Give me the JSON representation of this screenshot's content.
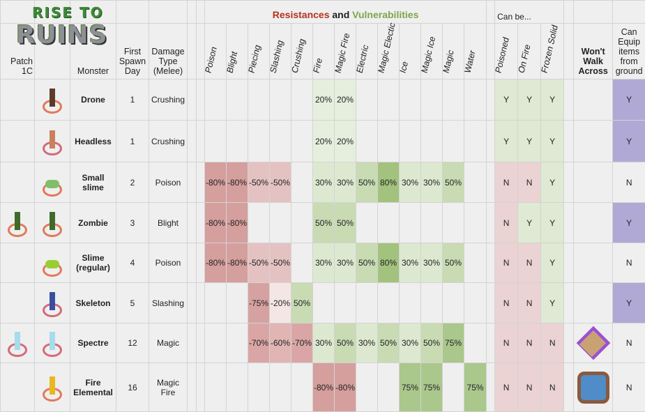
{
  "logo": {
    "line1": "RISE TO",
    "line2": "RUINS"
  },
  "header": {
    "title_res": "Resistances",
    "title_and": " and ",
    "title_vul": "Vulnerabilities",
    "can_be": "Can be...",
    "patch": "Patch 1C",
    "monster": "Monster",
    "first_spawn": "First Spawn Day",
    "damage_type": "Damage Type (Melee)",
    "damage_columns": [
      "Poison",
      "Blight",
      "Piecing",
      "Slashing",
      "Crushing",
      "Fire",
      "Magic Fire",
      "Electric",
      "Magic Electic",
      "Ice",
      "Magic Ice",
      "Magic",
      "Water"
    ],
    "can_be_columns": [
      "Poisoned",
      "On Fire",
      "Frozen Solid"
    ],
    "wont_walk": "Won't Walk Across",
    "can_equip": "Can Equip items from ground"
  },
  "colors": {
    "-80%": "#d59f9e",
    "-75%": "#d6a2a1",
    "-70%": "#d9a6a5",
    "-60%": "#e0b5b4",
    "-50%": "#e5c2c2",
    "-20%": "#f4e6e5",
    "20%": "#e6efdd",
    "30%": "#dde8d0",
    "50%": "#c8dbb3",
    "75%": "#aac78c",
    "80%": "#a3c27e",
    "Y": "#dfe9d3",
    "N": "#ebd3d3",
    "equip_Y": "#b1a9d5"
  },
  "monsters": [
    {
      "name": "Drone",
      "day": "1",
      "damage": "Crushing",
      "patch_sprite": "",
      "sprite": "drone-sprite",
      "res": [
        "",
        "",
        "",
        "",
        "",
        "20%",
        "20%",
        "",
        "",
        "",
        "",
        "",
        ""
      ],
      "can_be": [
        "Y",
        "Y",
        "Y"
      ],
      "wont_walk": "",
      "equip": "Y"
    },
    {
      "name": "Headless",
      "day": "1",
      "damage": "Crushing",
      "patch_sprite": "",
      "sprite": "headless-sprite",
      "res": [
        "",
        "",
        "",
        "",
        "",
        "20%",
        "20%",
        "",
        "",
        "",
        "",
        "",
        ""
      ],
      "can_be": [
        "Y",
        "Y",
        "Y"
      ],
      "wont_walk": "",
      "equip": "Y"
    },
    {
      "name": "Small slime",
      "day": "2",
      "damage": "Poison",
      "patch_sprite": "",
      "sprite": "small-slime-sprite",
      "res": [
        "-80%",
        "-80%",
        "-50%",
        "-50%",
        "",
        "30%",
        "30%",
        "50%",
        "80%",
        "30%",
        "30%",
        "50%",
        ""
      ],
      "can_be": [
        "N",
        "N",
        "Y"
      ],
      "wont_walk": "",
      "equip": "N"
    },
    {
      "name": "Zombie",
      "day": "3",
      "damage": "Blight",
      "patch_sprite": "zombie-sprite",
      "sprite": "zombie-sprite",
      "res": [
        "-80%",
        "-80%",
        "",
        "",
        "",
        "50%",
        "50%",
        "",
        "",
        "",
        "",
        "",
        ""
      ],
      "can_be": [
        "N",
        "Y",
        "Y"
      ],
      "wont_walk": "",
      "equip": "Y"
    },
    {
      "name": "Slime (regular)",
      "day": "4",
      "damage": "Poison",
      "patch_sprite": "",
      "sprite": "slime-sprite",
      "res": [
        "-80%",
        "-80%",
        "-50%",
        "-50%",
        "",
        "30%",
        "30%",
        "50%",
        "80%",
        "30%",
        "30%",
        "50%",
        ""
      ],
      "can_be": [
        "N",
        "N",
        "Y"
      ],
      "wont_walk": "",
      "equip": "N"
    },
    {
      "name": "Skeleton",
      "day": "5",
      "damage": "Slashing",
      "patch_sprite": "",
      "sprite": "skeleton-sprite",
      "res": [
        "",
        "",
        "-75%",
        "-20%",
        "50%",
        "",
        "",
        "",
        "",
        "",
        "",
        "",
        ""
      ],
      "can_be": [
        "N",
        "N",
        "Y"
      ],
      "wont_walk": "",
      "equip": "Y"
    },
    {
      "name": "Spectre",
      "day": "12",
      "damage": "Magic",
      "patch_sprite": "spectre-sprite",
      "sprite": "spectre-sprite",
      "res": [
        "",
        "",
        "-70%",
        "-60%",
        "-70%",
        "30%",
        "50%",
        "30%",
        "50%",
        "30%",
        "50%",
        "75%",
        ""
      ],
      "can_be": [
        "N",
        "N",
        "N"
      ],
      "wont_walk": "crystal-tile-icon",
      "equip": "N"
    },
    {
      "name": "Fire Elemental",
      "day": "16",
      "damage": "Magic Fire",
      "patch_sprite": "",
      "sprite": "fire-elemental-sprite",
      "res": [
        "",
        "",
        "",
        "",
        "",
        "-80%",
        "-80%",
        "",
        "",
        "75%",
        "75%",
        "",
        "75%"
      ],
      "can_be": [
        "N",
        "N",
        "N"
      ],
      "wont_walk": "water-pool-icon",
      "equip": "N"
    }
  ]
}
